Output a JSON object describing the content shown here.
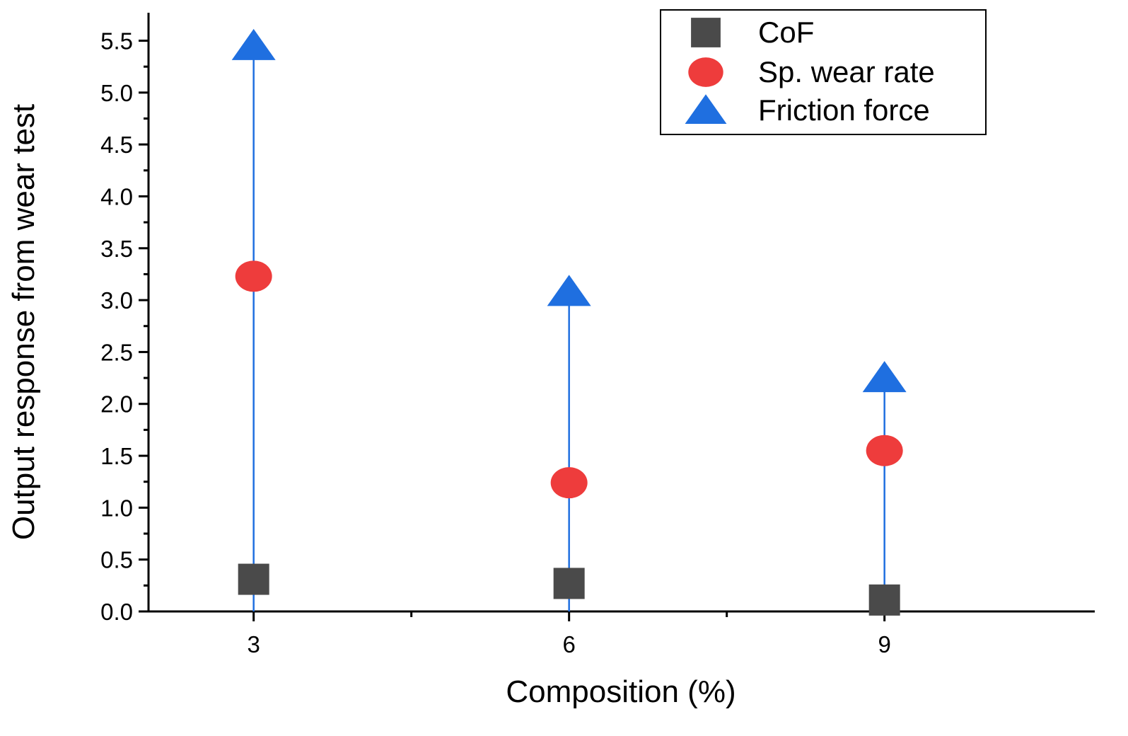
{
  "chart_data": {
    "type": "scatter",
    "x": [
      3,
      6,
      9
    ],
    "x_tick_labels": [
      "3",
      "6",
      "9"
    ],
    "xlabel": "Composition (%)",
    "ylabel": "Output response from wear test",
    "xlim": [
      2,
      11
    ],
    "ylim": [
      0,
      5.5
    ],
    "y_tick_labels": [
      "0.0",
      "0.5",
      "1.0",
      "1.5",
      "2.0",
      "2.5",
      "3.0",
      "3.5",
      "4.0",
      "4.5",
      "5.0",
      "5.5"
    ],
    "grid": false,
    "legend_position": "top-right",
    "series": [
      {
        "name": "CoF",
        "values": [
          0.31,
          0.27,
          0.11
        ],
        "marker": "square",
        "color": "#4a4a4a"
      },
      {
        "name": "Sp. wear rate",
        "values": [
          3.23,
          1.24,
          1.55
        ],
        "marker": "circle",
        "color": "#ee3c3c"
      },
      {
        "name": "Friction force",
        "values": [
          5.45,
          3.08,
          2.25
        ],
        "marker": "triangle",
        "color": "#1f6fe0",
        "drop_lines": true
      }
    ]
  }
}
